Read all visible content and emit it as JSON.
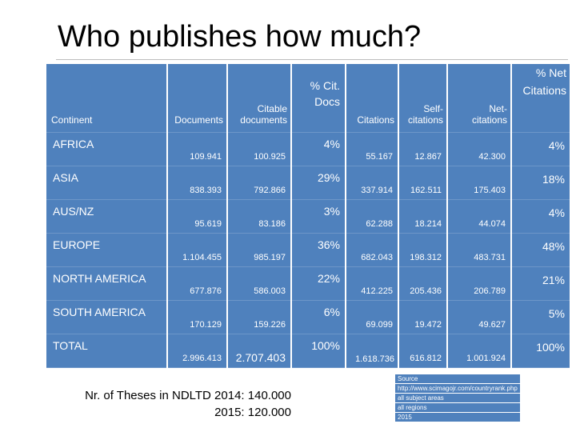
{
  "title": "Who publishes how much?",
  "table": {
    "headers": {
      "continent": "Continent",
      "documents": "Documents",
      "citable_documents_1": "Citable",
      "citable_documents_2": "documents",
      "pct_cit_docs_1": "% Cit.",
      "pct_cit_docs_2": "Docs",
      "citations": "Citations",
      "self_citations_1": "Self-",
      "self_citations_2": "citations",
      "net_citations_1": "Net-",
      "net_citations_2": "citations",
      "pct_net_citations_1": "% Net",
      "pct_net_citations_2": "Citations"
    },
    "rows": [
      {
        "continent": "AFRICA",
        "documents": "109.941",
        "citable_documents": "100.925",
        "pct_cit_docs": "4%",
        "citations": "55.167",
        "self_citations": "12.867",
        "net_citations": "42.300",
        "pct_net_citations": "4%"
      },
      {
        "continent": "ASIA",
        "documents": "838.393",
        "citable_documents": "792.866",
        "pct_cit_docs": "29%",
        "citations": "337.914",
        "self_citations": "162.511",
        "net_citations": "175.403",
        "pct_net_citations": "18%"
      },
      {
        "continent": "AUS/NZ",
        "documents": "95.619",
        "citable_documents": "83.186",
        "pct_cit_docs": "3%",
        "citations": "62.288",
        "self_citations": "18.214",
        "net_citations": "44.074",
        "pct_net_citations": "4%"
      },
      {
        "continent": "EUROPE",
        "documents": "1.104.455",
        "citable_documents": "985.197",
        "pct_cit_docs": "36%",
        "citations": "682.043",
        "self_citations": "198.312",
        "net_citations": "483.731",
        "pct_net_citations": "48%"
      },
      {
        "continent": "NORTH AMERICA",
        "documents": "677.876",
        "citable_documents": "586.003",
        "pct_cit_docs": "22%",
        "citations": "412.225",
        "self_citations": "205.436",
        "net_citations": "206.789",
        "pct_net_citations": "21%"
      },
      {
        "continent": "SOUTH AMERICA",
        "documents": "170.129",
        "citable_documents": "159.226",
        "pct_cit_docs": "6%",
        "citations": "69.099",
        "self_citations": "19.472",
        "net_citations": "49.627",
        "pct_net_citations": "5%"
      },
      {
        "continent": "TOTAL",
        "documents": "2.996.413",
        "citable_documents": "2.707.403",
        "pct_cit_docs": "100%",
        "citations": "1.618.736",
        "self_citations": "616.812",
        "net_citations": "1.001.924",
        "pct_net_citations": "100%"
      }
    ]
  },
  "note": {
    "line1": "Nr. of Theses in NDLTD 2014: 140.000",
    "line2": "2015: 120.000"
  },
  "source": [
    "Source",
    "http://www.scimagojr.com/countryrank.php",
    "all subject areas",
    "all regions",
    "2015"
  ],
  "colors": {
    "table_fill": "#4f81bd",
    "table_text": "#ffffff"
  }
}
